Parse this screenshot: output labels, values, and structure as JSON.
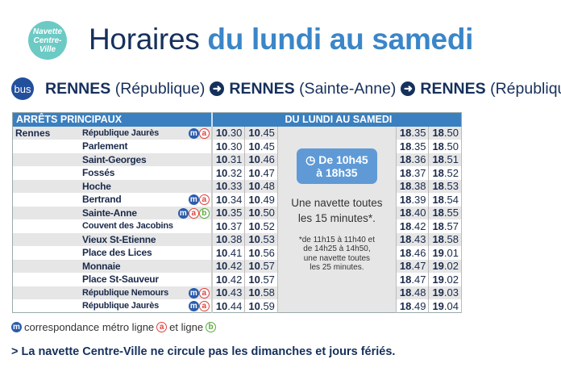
{
  "logo": {
    "line1": "Navette",
    "line2": "Centre-",
    "line3": "Ville"
  },
  "title": {
    "part1": "Horaires ",
    "part2": "du lundi au samedi"
  },
  "route": {
    "bus": "bus",
    "from_city": "RENNES",
    "from_stop": "(République)",
    "via_city": "RENNES",
    "via_stop": "(Sainte-Anne)",
    "to_city": "RENNES",
    "to_stop": "(République)"
  },
  "table": {
    "header_stops": "ARRÊTS PRINCIPAUX",
    "header_days": "DU LUNDI AU SAMEDI",
    "city": "Rennes",
    "rows": [
      {
        "stop": "République Jaurès",
        "icons": [
          "m",
          "a"
        ],
        "t": [
          "10.30",
          "10.45",
          "18.35",
          "18.50"
        ]
      },
      {
        "stop": "Parlement",
        "icons": [],
        "t": [
          "10.30",
          "10.45",
          "18.35",
          "18.50"
        ]
      },
      {
        "stop": "Saint-Georges",
        "icons": [],
        "t": [
          "10.31",
          "10.46",
          "18.36",
          "18.51"
        ]
      },
      {
        "stop": "Fossés",
        "icons": [],
        "t": [
          "10.32",
          "10.47",
          "18.37",
          "18.52"
        ]
      },
      {
        "stop": "Hoche",
        "icons": [],
        "t": [
          "10.33",
          "10.48",
          "18.38",
          "18.53"
        ]
      },
      {
        "stop": "Bertrand",
        "icons": [
          "m",
          "a"
        ],
        "t": [
          "10.34",
          "10.49",
          "18.39",
          "18.54"
        ]
      },
      {
        "stop": "Sainte-Anne",
        "icons": [
          "m",
          "a",
          "b"
        ],
        "t": [
          "10.35",
          "10.50",
          "18.40",
          "18.55"
        ]
      },
      {
        "stop": "Couvent des Jacobins",
        "icons": [],
        "t": [
          "10.37",
          "10.52",
          "18.42",
          "18.57"
        ]
      },
      {
        "stop": "Vieux St-Etienne",
        "icons": [],
        "t": [
          "10.38",
          "10.53",
          "18.43",
          "18.58"
        ]
      },
      {
        "stop": "Place des Lices",
        "icons": [],
        "t": [
          "10.41",
          "10.56",
          "18.46",
          "19.01"
        ]
      },
      {
        "stop": "Monnaie",
        "icons": [],
        "t": [
          "10.42",
          "10.57",
          "18.47",
          "19.02"
        ]
      },
      {
        "stop": "Place St-Sauveur",
        "icons": [],
        "t": [
          "10.42",
          "10.57",
          "18.47",
          "19.02"
        ]
      },
      {
        "stop": "République Nemours",
        "icons": [
          "m",
          "a"
        ],
        "t": [
          "10.43",
          "10.58",
          "18.48",
          "19.03"
        ]
      },
      {
        "stop": "République Jaurès",
        "icons": [
          "m",
          "a"
        ],
        "t": [
          "10.44",
          "10.59",
          "18.49",
          "19.04"
        ]
      }
    ],
    "badge_line1": "De 10h45",
    "badge_line2": "à 18h35",
    "freq_line1": "Une navette toutes",
    "freq_line2": "les 15 minutes*.",
    "note_line1": "*de 11h15 à 11h40 et",
    "note_line2": "de 14h25 à 14h50,",
    "note_line3": "une navette toutes",
    "note_line4": "les 25 minutes."
  },
  "icon_labels": {
    "m": "m",
    "a": "a",
    "b": "b"
  },
  "legend": {
    "text1": "correspondance métro ligne",
    "text2": "et ligne"
  },
  "footer": "> La navette Centre-Ville ne circule pas les dimanches et jours fériés.",
  "colors": {
    "metro": "#2a5cac",
    "line_a": "#e0413a",
    "line_b": "#5aaa3a",
    "header": "#3a7fc0",
    "logo": "#6ccac4"
  }
}
